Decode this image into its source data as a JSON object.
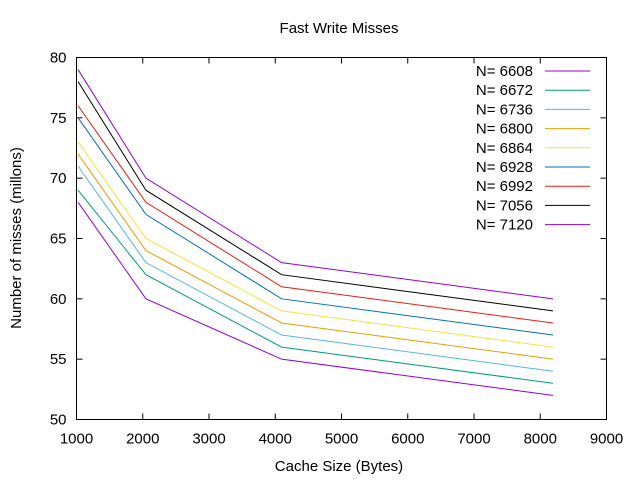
{
  "chart_data": {
    "type": "line",
    "title": "Fast Write Misses",
    "xlabel": "Cache Size (Bytes)",
    "ylabel": "Number of misses (millons)",
    "xlim": [
      1000,
      9000
    ],
    "ylim": [
      50,
      80
    ],
    "xticks": [
      "1000",
      "2000",
      "3000",
      "4000",
      "5000",
      "6000",
      "7000",
      "8000",
      "9000"
    ],
    "yticks": [
      "50",
      "55",
      "60",
      "65",
      "70",
      "75",
      "80"
    ],
    "grid": false,
    "legend_position": "top-right",
    "x": [
      1024,
      2048,
      4096,
      8192
    ],
    "series": [
      {
        "name": "N= 6608",
        "color": "#9400d3",
        "values": [
          68,
          60,
          55,
          52
        ]
      },
      {
        "name": "N= 6672",
        "color": "#009e73",
        "values": [
          69,
          62,
          56,
          53
        ]
      },
      {
        "name": "N= 6736",
        "color": "#56b4e9",
        "values": [
          71,
          63,
          57,
          54
        ]
      },
      {
        "name": "N= 6800",
        "color": "#e69f00",
        "values": [
          72,
          64,
          58,
          55
        ]
      },
      {
        "name": "N= 6864",
        "color": "#f0e442",
        "values": [
          73,
          65,
          59,
          56
        ]
      },
      {
        "name": "N= 6928",
        "color": "#0072b2",
        "values": [
          75,
          67,
          60,
          57
        ]
      },
      {
        "name": "N= 6992",
        "color": "#e51e10",
        "values": [
          76,
          68,
          61,
          58
        ]
      },
      {
        "name": "N= 7056",
        "color": "#000000",
        "values": [
          78,
          69,
          62,
          59
        ]
      },
      {
        "name": "N= 7120",
        "color": "#9400d3",
        "values": [
          79,
          70,
          63,
          60
        ]
      }
    ]
  }
}
